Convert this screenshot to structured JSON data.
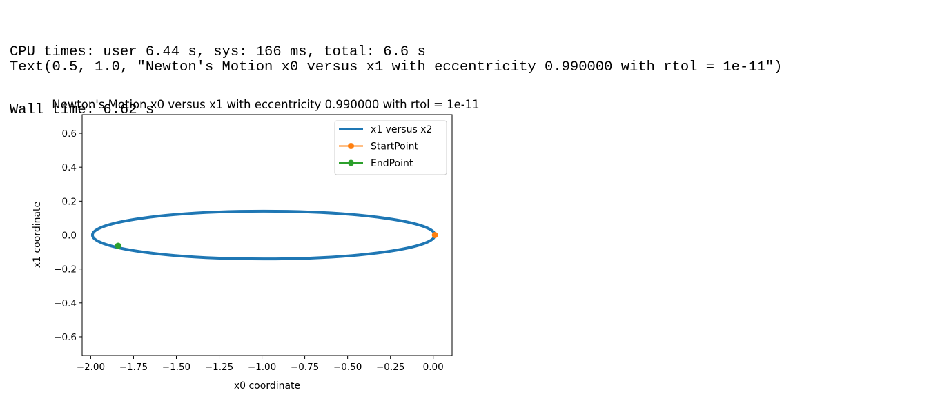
{
  "output": {
    "stdout_lines": [
      "CPU times: user 6.44 s, sys: 166 ms, total: 6.6 s",
      "Wall time: 6.62 s"
    ],
    "result": "Text(0.5, 1.0, \"Newton's Motion x0 versus x1 with eccentricity 0.990000 with rtol = 1e-11\")"
  },
  "chart_data": {
    "type": "line",
    "title": "Newton's Motion x0 versus x1 with eccentricity 0.990000 with rtol = 1e-11",
    "xlabel": "x0 coordinate",
    "ylabel": "x1 coordinate",
    "xlim": [
      -2.05,
      0.11
    ],
    "ylim": [
      -0.71,
      0.71
    ],
    "xticks": [
      -2.0,
      -1.75,
      -1.5,
      -1.25,
      -1.0,
      -0.75,
      -0.5,
      -0.25,
      0.0
    ],
    "xtick_labels": [
      "−2.00",
      "−1.75",
      "−1.50",
      "−1.25",
      "−1.00",
      "−0.75",
      "−0.50",
      "−0.25",
      "0.00"
    ],
    "yticks": [
      0.6,
      0.4,
      0.2,
      0.0,
      -0.2,
      -0.4,
      -0.6
    ],
    "ytick_labels": [
      "0.6",
      "0.4",
      "0.2",
      "0.0",
      "−0.2",
      "−0.4",
      "−0.6"
    ],
    "grid": false,
    "legend_position": "top-right",
    "series": [
      {
        "name": "x1 versus x2",
        "color": "#1f77b4",
        "kind": "ellipse",
        "center": [
          -0.99,
          0.0
        ],
        "semi_major": 1.0,
        "semi_minor": 0.141,
        "values": [
          [
            0.01,
            0.0
          ],
          [
            -0.124,
            0.07
          ],
          [
            -0.49,
            0.122
          ],
          [
            -0.99,
            0.141
          ],
          [
            -1.49,
            0.122
          ],
          [
            -1.856,
            0.07
          ],
          [
            -1.99,
            0.0
          ],
          [
            -1.856,
            -0.07
          ],
          [
            -1.49,
            -0.122
          ],
          [
            -0.99,
            -0.141
          ],
          [
            -0.49,
            -0.122
          ],
          [
            -0.124,
            -0.07
          ]
        ]
      },
      {
        "name": "StartPoint",
        "color": "#ff7f0e",
        "points": [
          [
            0.01,
            0.0
          ]
        ]
      },
      {
        "name": "EndPoint",
        "color": "#2ca02c",
        "points": [
          [
            -1.84,
            -0.063
          ]
        ]
      }
    ]
  }
}
